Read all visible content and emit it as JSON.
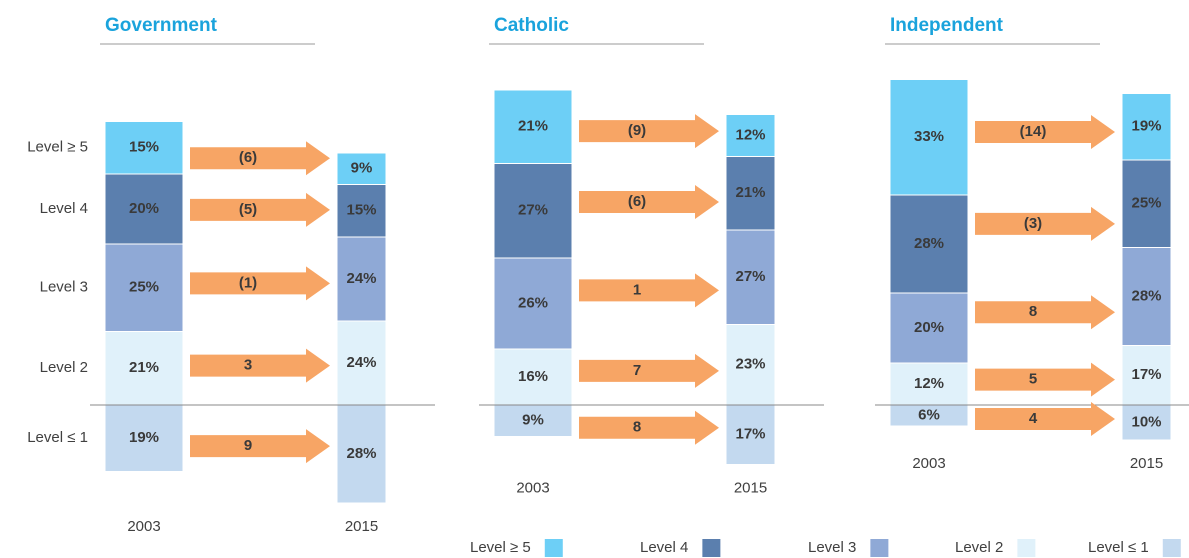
{
  "chart_data": [
    {
      "type": "bar",
      "title": "Government",
      "categories": [
        "2003",
        "2015"
      ],
      "series": [
        {
          "name": "Level ≥ 5",
          "color": "#6dcff6",
          "values": [
            15,
            9
          ],
          "value_labels": [
            "15%",
            "9%"
          ]
        },
        {
          "name": "Level 4",
          "color": "#5b7fae",
          "values": [
            20,
            15
          ],
          "value_labels": [
            "20%",
            "15%"
          ]
        },
        {
          "name": "Level 3",
          "color": "#8fa9d6",
          "values": [
            25,
            24
          ],
          "value_labels": [
            "25%",
            "24%"
          ]
        },
        {
          "name": "Level 2",
          "color": "#e0f1fa",
          "values": [
            21,
            24
          ],
          "value_labels": [
            "21%",
            "24%"
          ]
        },
        {
          "name": "Level ≤ 1",
          "color": "#c3d9ef",
          "values": [
            19,
            28
          ],
          "value_labels": [
            "19%",
            "28%"
          ]
        }
      ],
      "changes": {
        "color": "#f7a565",
        "values": [
          -6,
          -5,
          -1,
          3,
          9
        ],
        "value_labels": [
          "(6)",
          "(5)",
          "(1)",
          "3",
          "9"
        ]
      }
    },
    {
      "type": "bar",
      "title": "Catholic",
      "categories": [
        "2003",
        "2015"
      ],
      "series": [
        {
          "name": "Level ≥ 5",
          "color": "#6dcff6",
          "values": [
            21,
            12
          ],
          "value_labels": [
            "21%",
            "12%"
          ]
        },
        {
          "name": "Level 4",
          "color": "#5b7fae",
          "values": [
            27,
            21
          ],
          "value_labels": [
            "27%",
            "21%"
          ]
        },
        {
          "name": "Level 3",
          "color": "#8fa9d6",
          "values": [
            26,
            27
          ],
          "value_labels": [
            "26%",
            "27%"
          ]
        },
        {
          "name": "Level 2",
          "color": "#e0f1fa",
          "values": [
            16,
            23
          ],
          "value_labels": [
            "16%",
            "23%"
          ]
        },
        {
          "name": "Level ≤ 1",
          "color": "#c3d9ef",
          "values": [
            9,
            17
          ],
          "value_labels": [
            "9%",
            "17%"
          ]
        }
      ],
      "changes": {
        "color": "#f7a565",
        "values": [
          -9,
          -6,
          1,
          7,
          8
        ],
        "value_labels": [
          "(9)",
          "(6)",
          "1",
          "7",
          "8"
        ]
      }
    },
    {
      "type": "bar",
      "title": "Independent",
      "categories": [
        "2003",
        "2015"
      ],
      "series": [
        {
          "name": "Level ≥ 5",
          "color": "#6dcff6",
          "values": [
            33,
            19
          ],
          "value_labels": [
            "33%",
            "19%"
          ]
        },
        {
          "name": "Level 4",
          "color": "#5b7fae",
          "values": [
            28,
            25
          ],
          "value_labels": [
            "28%",
            "25%"
          ]
        },
        {
          "name": "Level 3",
          "color": "#8fa9d6",
          "values": [
            20,
            28
          ],
          "value_labels": [
            "20%",
            "28%"
          ]
        },
        {
          "name": "Level 2",
          "color": "#e0f1fa",
          "values": [
            12,
            17
          ],
          "value_labels": [
            "12%",
            "17%"
          ]
        },
        {
          "name": "Level ≤ 1",
          "color": "#c3d9ef",
          "values": [
            6,
            10
          ],
          "value_labels": [
            "6%",
            "10%"
          ]
        }
      ],
      "changes": {
        "color": "#f7a565",
        "values": [
          -14,
          -3,
          8,
          5,
          4
        ],
        "value_labels": [
          "(14)",
          "(3)",
          "8",
          "5",
          "4"
        ]
      }
    }
  ]
}
